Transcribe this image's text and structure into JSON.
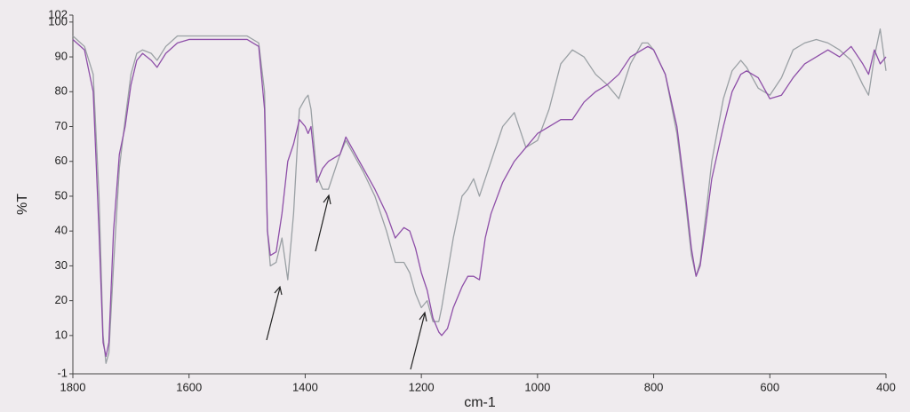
{
  "chart_data": {
    "type": "line",
    "x_label": "cm-1",
    "y_label": "%T",
    "x": [
      1800,
      1780,
      1765,
      1755,
      1748,
      1743,
      1738,
      1730,
      1720,
      1710,
      1700,
      1690,
      1680,
      1665,
      1655,
      1640,
      1620,
      1600,
      1550,
      1500,
      1480,
      1470,
      1465,
      1460,
      1450,
      1440,
      1430,
      1420,
      1410,
      1400,
      1395,
      1390,
      1380,
      1370,
      1360,
      1340,
      1330,
      1320,
      1300,
      1280,
      1260,
      1245,
      1230,
      1220,
      1210,
      1200,
      1190,
      1180,
      1170,
      1165,
      1155,
      1145,
      1130,
      1120,
      1110,
      1100,
      1090,
      1080,
      1060,
      1040,
      1020,
      1000,
      980,
      960,
      940,
      920,
      900,
      880,
      860,
      840,
      820,
      810,
      800,
      780,
      760,
      745,
      735,
      727,
      720,
      710,
      700,
      680,
      665,
      650,
      640,
      620,
      600,
      580,
      560,
      540,
      520,
      500,
      480,
      460,
      440,
      430,
      420,
      410,
      400
    ],
    "series": [
      {
        "color": "#8e4fa8",
        "values": [
          95,
          92,
          80,
          40,
          8,
          4,
          8,
          40,
          62,
          70,
          82,
          89,
          91,
          89,
          87,
          91,
          94,
          95,
          95,
          95,
          93,
          75,
          40,
          33,
          34,
          45,
          60,
          65,
          72,
          70,
          68,
          70,
          54,
          58,
          60,
          62,
          67,
          64,
          58,
          52,
          45,
          38,
          41,
          40,
          35,
          28,
          23,
          15,
          11,
          10,
          12,
          18,
          24,
          27,
          27,
          26,
          38,
          45,
          54,
          60,
          64,
          68,
          70,
          72,
          72,
          77,
          80,
          82,
          85,
          90,
          92,
          93,
          92,
          85,
          70,
          50,
          35,
          27,
          30,
          42,
          55,
          70,
          80,
          85,
          86,
          84,
          78,
          79,
          84,
          88,
          90,
          92,
          90,
          93,
          88,
          85,
          92,
          88,
          90
        ]
      },
      {
        "color": "#9aa0a4",
        "values": [
          96,
          93,
          85,
          50,
          10,
          2,
          5,
          30,
          58,
          72,
          85,
          91,
          92,
          91,
          89,
          93,
          96,
          96,
          96,
          96,
          94,
          80,
          40,
          30,
          31,
          38,
          26,
          45,
          75,
          78,
          79,
          75,
          56,
          52,
          52,
          62,
          66,
          63,
          57,
          50,
          40,
          31,
          31,
          28,
          22,
          18,
          20,
          14,
          14,
          18,
          28,
          38,
          50,
          52,
          55,
          50,
          55,
          60,
          70,
          74,
          64,
          66,
          75,
          88,
          92,
          90,
          85,
          82,
          78,
          88,
          94,
          94,
          92,
          85,
          68,
          48,
          33,
          27,
          31,
          45,
          60,
          78,
          86,
          89,
          87,
          81,
          79,
          84,
          92,
          94,
          95,
          94,
          92,
          89,
          82,
          79,
          90,
          98,
          86
        ]
      }
    ],
    "xlim": [
      1800,
      400
    ],
    "xticks": [
      1800,
      1600,
      1400,
      1200,
      1000,
      800,
      600,
      400
    ],
    "ylim": [
      -1,
      102
    ],
    "yticks": [
      -1,
      10,
      20,
      30,
      40,
      50,
      60,
      70,
      80,
      90,
      100,
      102
    ],
    "grid": false
  }
}
